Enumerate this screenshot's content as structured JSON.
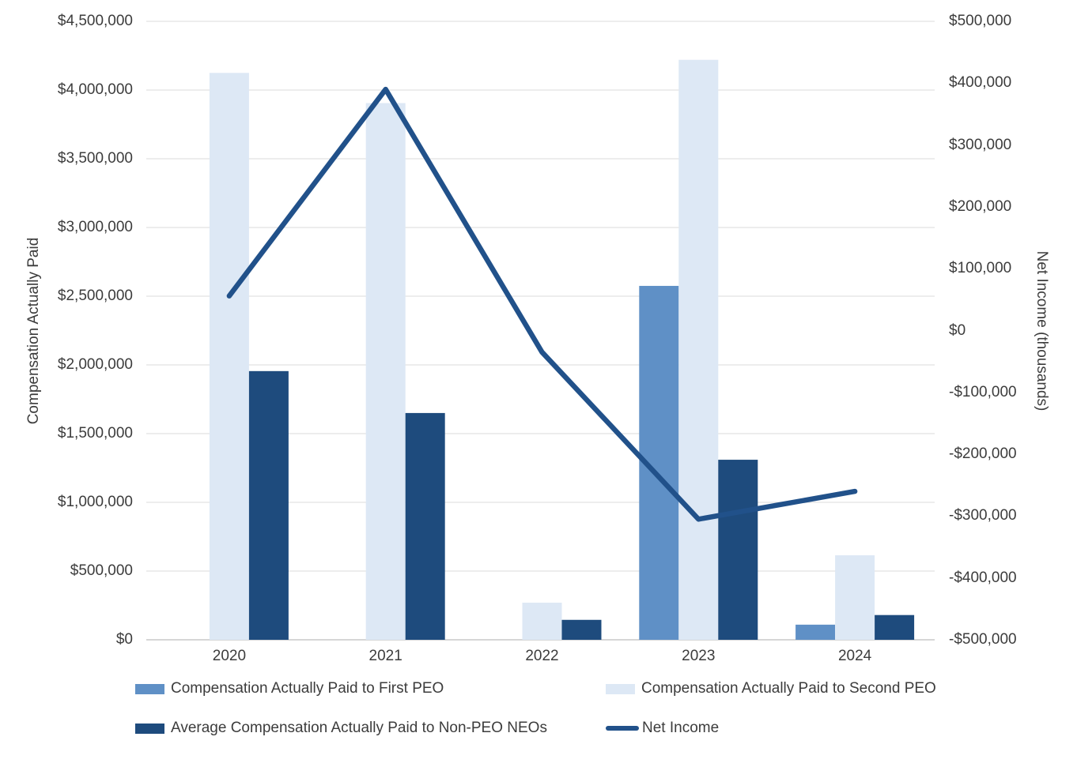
{
  "chart_data": {
    "type": "bar",
    "subtype": "clustered-bar-with-line-combo",
    "title": "",
    "categories": [
      "2020",
      "2021",
      "2022",
      "2023",
      "2024"
    ],
    "series": [
      {
        "name": "Compensation Actually Paid to First PEO",
        "type": "bar",
        "axis": "left",
        "color": "#5F90C6",
        "values": [
          null,
          null,
          null,
          2575000,
          110000
        ]
      },
      {
        "name": "Compensation Actually Paid to Second PEO",
        "type": "bar",
        "axis": "left",
        "color": "#DDE8F5",
        "values": [
          4125000,
          3905000,
          270000,
          4220000,
          615000
        ]
      },
      {
        "name": "Average Compensation Actually Paid to Non-PEO NEOs",
        "type": "bar",
        "axis": "left",
        "color": "#1E4B7D",
        "values": [
          1955000,
          1650000,
          145000,
          1310000,
          180000
        ]
      },
      {
        "name": "Net Income",
        "type": "line",
        "axis": "right",
        "color": "#21518A",
        "values": [
          56000,
          390000,
          -35000,
          -305000,
          -260000
        ]
      }
    ],
    "left_axis": {
      "title": "Compensation Actually Paid",
      "min": 0,
      "max": 4500000,
      "step": 500000,
      "tick_labels": [
        "$4,500,000",
        "$4,000,000",
        "$3,500,000",
        "$3,000,000",
        "$2,500,000",
        "$2,000,000",
        "$1,500,000",
        "$1,000,000",
        "$500,000",
        "$0"
      ]
    },
    "right_axis": {
      "title": "Net Income (thousands)",
      "min": -500000,
      "max": 500000,
      "step": 100000,
      "tick_labels": [
        "$500,000",
        "$400,000",
        "$300,000",
        "$200,000",
        "$100,000",
        "$0",
        "-$100,000",
        "-$200,000",
        "-$300,000",
        "-$400,000",
        "-$500,000"
      ]
    },
    "grid": true,
    "legend_position": "bottom",
    "colors": {
      "gridline": "#E2E2E2",
      "axis_line": "#C9C9C9",
      "text": "#3C3C3C"
    }
  }
}
